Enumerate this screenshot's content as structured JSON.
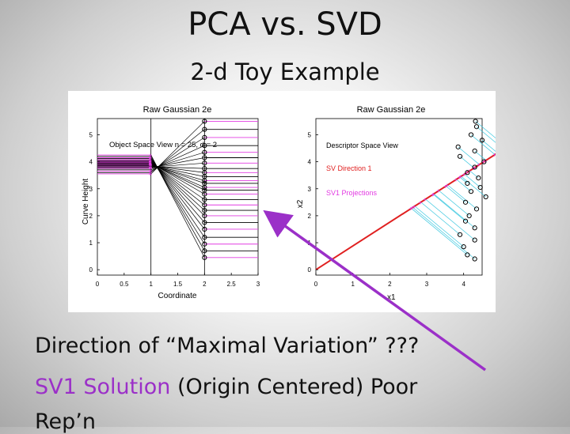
{
  "slide": {
    "title": "PCA vs. SVD",
    "subtitle": "2-d Toy Example"
  },
  "body": {
    "line1": "Direction of  “Maximal Variation” ???",
    "line2_highlight": "SV1 Solution",
    "line2_rest": " (Origin Centered)  Poor",
    "line3": "Rep’n"
  },
  "colors": {
    "accent_purple": "#9b30c8",
    "magenta": "#e23be2",
    "red": "#e02020",
    "cyan": "#3cc8e0"
  },
  "chart_data": [
    {
      "type": "line",
      "title": "Raw Gaussian 2e",
      "annotation": "Object Space View n = 25, d = 2",
      "xlabel": "Coordinate",
      "ylabel": "Curve Height",
      "xlim": [
        0,
        3
      ],
      "ylim": [
        -0.2,
        5.6
      ],
      "xticks": [
        "0",
        "0.5",
        "1",
        "1.5",
        "2",
        "2.5",
        "3"
      ],
      "yticks": [
        "0",
        "1",
        "2",
        "3",
        "4",
        "5"
      ],
      "x1_values": [
        3.55,
        3.6,
        3.65,
        3.7,
        3.75,
        3.78,
        3.8,
        3.82,
        3.85,
        3.86,
        3.88,
        3.9,
        3.92,
        3.93,
        3.95,
        3.96,
        3.98,
        4.0,
        4.02,
        4.05,
        4.08,
        4.12,
        4.15,
        4.2,
        4.25
      ],
      "x2_values": [
        5.5,
        5.2,
        4.9,
        4.6,
        4.35,
        4.15,
        3.95,
        3.75,
        3.6,
        3.45,
        3.3,
        3.2,
        3.05,
        2.95,
        2.8,
        2.6,
        2.4,
        2.2,
        2.0,
        1.75,
        1.5,
        1.2,
        0.95,
        0.7,
        0.45
      ]
    },
    {
      "type": "scatter",
      "title": "Raw Gaussian 2e",
      "xlabel": "x1",
      "ylabel": "x2",
      "xlim": [
        0,
        4.5
      ],
      "ylim": [
        -0.2,
        5.6
      ],
      "xticks": [
        "0",
        "1",
        "2",
        "3",
        "4"
      ],
      "yticks": [
        "0",
        "1",
        "2",
        "3",
        "4",
        "5"
      ],
      "legend": [
        "Descriptor Space View",
        "SV Direction 1",
        "SV1 Projections"
      ],
      "legend_placement": "top-left",
      "x": [
        4.32,
        4.35,
        4.2,
        4.5,
        3.85,
        4.3,
        3.9,
        4.55,
        4.3,
        4.1,
        4.4,
        4.1,
        4.45,
        4.2,
        4.6,
        4.05,
        4.35,
        4.15,
        4.05,
        4.3,
        3.9,
        4.3,
        4.0,
        4.1,
        4.3
      ],
      "y": [
        5.5,
        5.3,
        5.0,
        4.8,
        4.55,
        4.4,
        4.2,
        4.0,
        3.8,
        3.6,
        3.4,
        3.2,
        3.05,
        2.9,
        2.7,
        2.5,
        2.25,
        2.0,
        1.8,
        1.55,
        1.3,
        1.1,
        0.85,
        0.55,
        0.4
      ],
      "sv1_direction": [
        0.75,
        0.66
      ]
    }
  ]
}
